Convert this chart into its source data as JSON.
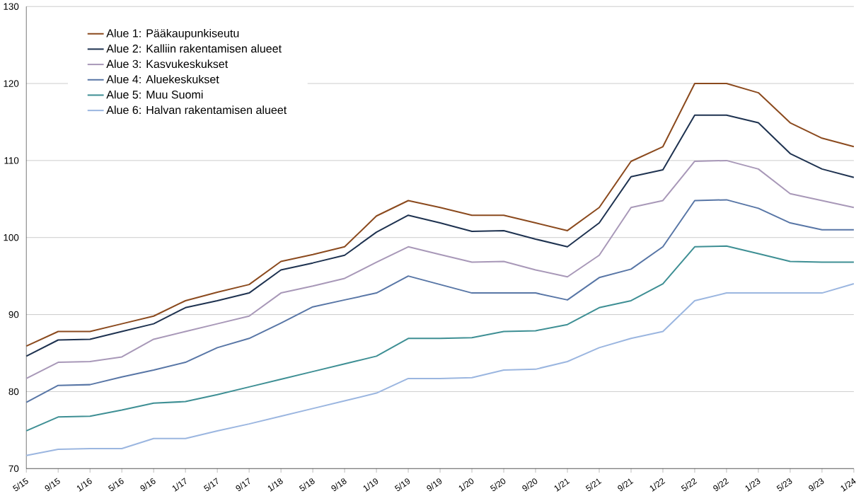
{
  "chart_data": {
    "type": "line",
    "categories": [
      "5/15",
      "9/15",
      "1/16",
      "5/16",
      "9/16",
      "1/17",
      "5/17",
      "9/17",
      "1/18",
      "5/18",
      "9/18",
      "1/19",
      "5/19",
      "9/19",
      "1/20",
      "5/20",
      "9/20",
      "1/21",
      "5/21",
      "9/21",
      "1/22",
      "5/22",
      "9/22",
      "1/23",
      "5/23",
      "9/23",
      "1/24"
    ],
    "series": [
      {
        "name": "Alue 1:  Pääkaupunkiseutu",
        "color": "#8b4a1e",
        "values": [
          85.9,
          87.8,
          87.8,
          88.8,
          89.8,
          91.8,
          92.9,
          93.9,
          96.9,
          97.8,
          98.8,
          102.8,
          104.8,
          103.9,
          102.9,
          102.9,
          101.9,
          100.9,
          103.9,
          109.9,
          111.8,
          120,
          120,
          118.8,
          114.9,
          112.9,
          111.8
        ]
      },
      {
        "name": "Alue 2:  Kalliin rakentamisen alueet",
        "color": "#1e3250",
        "values": [
          84.6,
          86.7,
          86.8,
          87.8,
          88.8,
          90.9,
          91.8,
          92.8,
          95.8,
          96.7,
          97.7,
          100.7,
          102.9,
          101.9,
          100.8,
          100.9,
          99.8,
          98.8,
          101.9,
          107.9,
          108.8,
          115.9,
          115.9,
          114.9,
          110.9,
          108.9,
          107.8
        ]
      },
      {
        "name": "Alue 3:  Kasvukeskukset",
        "color": "#a898b8",
        "values": [
          81.7,
          83.8,
          83.9,
          84.5,
          86.8,
          87.8,
          88.8,
          89.8,
          92.8,
          93.7,
          94.7,
          96.8,
          98.8,
          97.8,
          96.8,
          96.9,
          95.8,
          94.9,
          97.7,
          103.9,
          104.8,
          109.9,
          110.0,
          108.9,
          105.7,
          104.8,
          103.9
        ]
      },
      {
        "name": "Alue 4:  Aluekeskukset",
        "color": "#5876a6",
        "values": [
          78.6,
          80.8,
          80.9,
          81.9,
          82.8,
          83.8,
          85.7,
          86.9,
          88.9,
          91.0,
          91.9,
          92.8,
          95.0,
          93.9,
          92.8,
          92.8,
          92.8,
          91.9,
          94.8,
          95.9,
          98.8,
          104.8,
          104.9,
          103.8,
          101.9,
          101.0,
          101.0
        ]
      },
      {
        "name": "Alue 5:  Muu Suomi",
        "color": "#3e8f94",
        "values": [
          74.9,
          76.7,
          76.8,
          77.6,
          78.5,
          78.7,
          79.6,
          80.6,
          81.6,
          82.6,
          83.6,
          84.6,
          86.9,
          86.9,
          87.0,
          87.8,
          87.9,
          88.7,
          90.9,
          91.8,
          94.0,
          98.8,
          98.9,
          97.9,
          96.9,
          96.8,
          96.8
        ]
      },
      {
        "name": "Alue 6:  Halvan rakentamisen alueet",
        "color": "#9bb6e0",
        "values": [
          71.7,
          72.5,
          72.6,
          72.6,
          73.9,
          73.9,
          74.9,
          75.8,
          76.8,
          77.8,
          78.8,
          79.8,
          81.7,
          81.7,
          81.8,
          82.8,
          82.9,
          83.9,
          85.7,
          86.9,
          87.8,
          91.8,
          92.8,
          92.8,
          92.8,
          92.8,
          94.0
        ]
      }
    ],
    "ylim": [
      70,
      130
    ],
    "yticks": [
      70,
      80,
      90,
      100,
      110,
      120,
      130
    ],
    "grid": "y",
    "legend": "top left",
    "marker": "none",
    "line_style": "solid"
  }
}
